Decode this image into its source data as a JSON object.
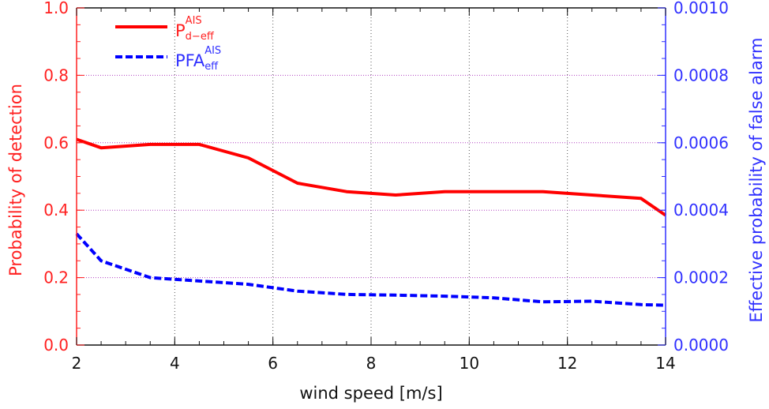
{
  "chart_data": {
    "type": "line",
    "xlabel": "wind speed [m/s]",
    "ylabel_left": "Probability of detection",
    "ylabel_right": "Effective probability of false alarm",
    "xlim": [
      2,
      14
    ],
    "ylim_left": [
      0.0,
      1.0
    ],
    "ylim_right": [
      0.0,
      0.001
    ],
    "x_ticks": [
      "2",
      "4",
      "6",
      "8",
      "10",
      "12",
      "14"
    ],
    "y_ticks_left": [
      "0.0",
      "0.2",
      "0.4",
      "0.6",
      "0.8",
      "1.0"
    ],
    "y_ticks_right": [
      "0.0000",
      "0.0002",
      "0.0004",
      "0.0006",
      "0.0008",
      "0.0010"
    ],
    "grid": true,
    "legend_position": "top-left",
    "series": [
      {
        "name": "P",
        "name_sup": "AIS",
        "name_sub": "d−eff",
        "axis": "left",
        "color": "#ff0000",
        "style": "solid",
        "x": [
          2,
          2.5,
          3.5,
          4.5,
          5.5,
          6.5,
          7.5,
          8.5,
          9.5,
          10.5,
          11.5,
          12.5,
          13.5,
          14
        ],
        "values": [
          0.61,
          0.585,
          0.595,
          0.595,
          0.555,
          0.48,
          0.455,
          0.445,
          0.455,
          0.455,
          0.455,
          0.445,
          0.435,
          0.385
        ]
      },
      {
        "name": "PFA",
        "name_sup": "AIS",
        "name_sub": "eff",
        "axis": "right",
        "color": "#0000ff",
        "style": "dashed",
        "x": [
          2,
          2.5,
          3.5,
          4.5,
          5.5,
          6.5,
          7.5,
          8.5,
          9.5,
          10.5,
          11.5,
          12.5,
          13.5,
          14
        ],
        "values": [
          0.00033,
          0.00025,
          0.0002,
          0.00019,
          0.00018,
          0.00016,
          0.00015,
          0.000148,
          0.000145,
          0.00014,
          0.000128,
          0.00013,
          0.00012,
          0.000118
        ]
      }
    ]
  }
}
